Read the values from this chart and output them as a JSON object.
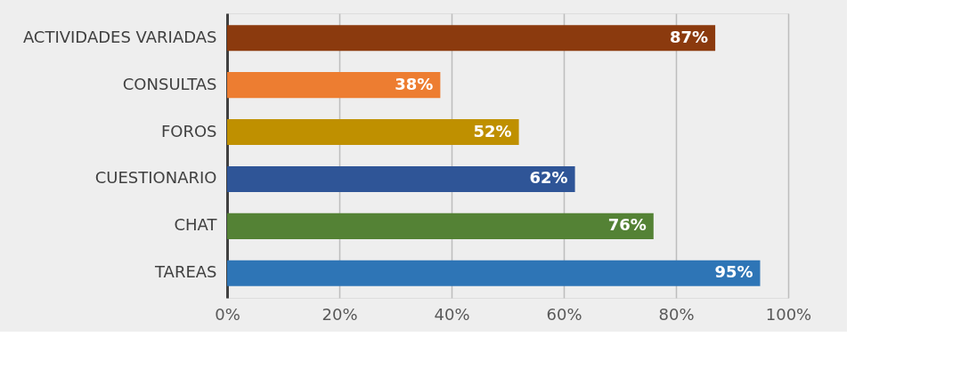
{
  "chart_data": {
    "type": "bar",
    "orientation": "horizontal",
    "categories": [
      "ACTIVIDADES VARIADAS",
      "CONSULTAS",
      "FOROS",
      "CUESTIONARIO",
      "CHAT",
      "TAREAS"
    ],
    "values": [
      87,
      38,
      52,
      62,
      76,
      95
    ],
    "colors": [
      "#8b3a0e",
      "#ed7d31",
      "#bf9000",
      "#2f5597",
      "#548235",
      "#2e75b6"
    ],
    "value_labels": [
      "87%",
      "38%",
      "52%",
      "62%",
      "76%",
      "95%"
    ],
    "xlim": [
      0,
      100
    ],
    "xticks": [
      {
        "value": 0,
        "label": "0%"
      },
      {
        "value": 20,
        "label": "20%"
      },
      {
        "value": 40,
        "label": "40%"
      },
      {
        "value": 60,
        "label": "60%"
      },
      {
        "value": 80,
        "label": "80%"
      },
      {
        "value": 100,
        "label": "100%"
      }
    ],
    "grid": "x"
  }
}
